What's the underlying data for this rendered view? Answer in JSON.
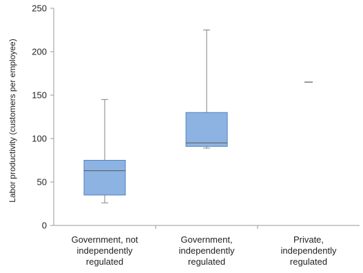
{
  "chart_data": {
    "type": "boxplot",
    "title": "",
    "xlabel": "",
    "ylabel": "Labor productivity (customers per employee)",
    "ylim": [
      0,
      250
    ],
    "yticks": [
      0,
      50,
      100,
      150,
      200,
      250
    ],
    "grid": false,
    "categories": [
      [
        "Government, not",
        "independently",
        "regulated"
      ],
      [
        "Government,",
        "independently",
        "regulated"
      ],
      [
        "Private,",
        "independently",
        "regulated"
      ]
    ],
    "boxes": [
      {
        "min": 26,
        "q1": 35,
        "median": 63,
        "q3": 75,
        "max": 145
      },
      {
        "min": 89,
        "q1": 91,
        "median": 95,
        "q3": 130,
        "max": 225
      },
      {
        "min": 165,
        "q1": 165,
        "median": 165,
        "q3": 165,
        "max": 165
      }
    ],
    "colors": {
      "box_fill": "#8db3e2",
      "box_stroke": "#4f81bd",
      "median": "#555555",
      "whisker": "#808080",
      "axis": "#999999"
    }
  }
}
